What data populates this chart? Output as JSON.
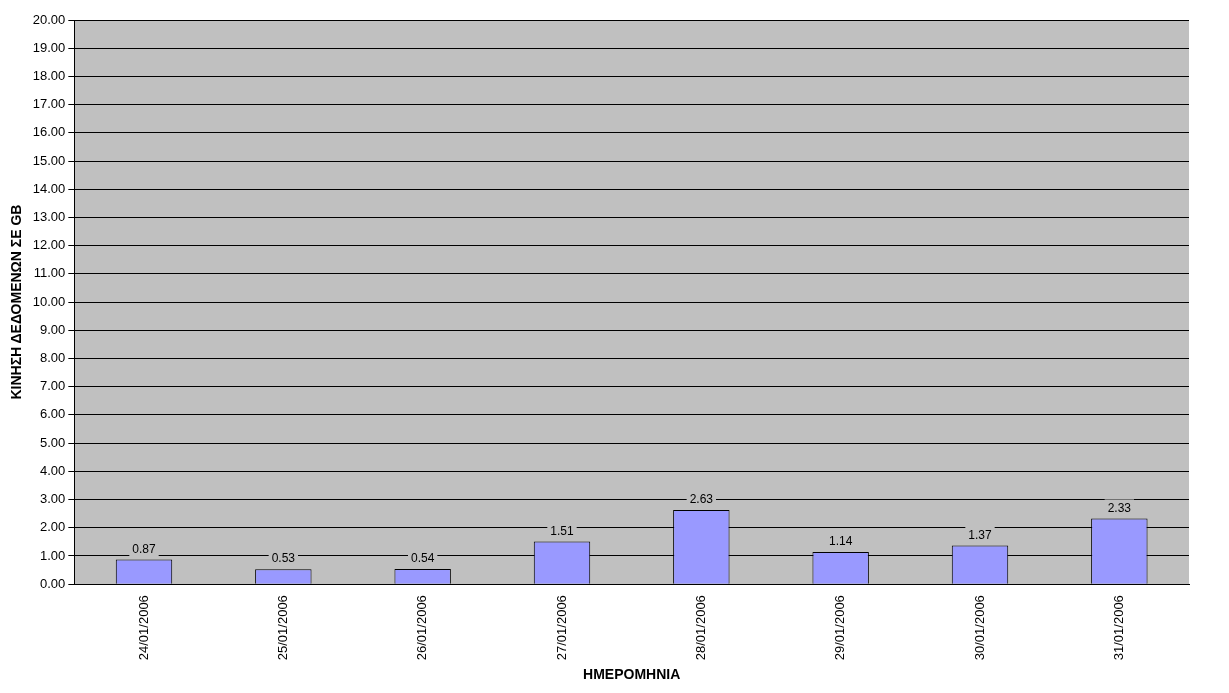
{
  "chart_data": {
    "type": "bar",
    "xlabel": "ΗΜΕΡΟΜΗΝΙΑ",
    "ylabel": "ΚΙΝΗΣΗ ΔΕΔΟΜΕΝΩΝ ΣΕ GB",
    "categories": [
      "24/01/2006",
      "25/01/2006",
      "26/01/2006",
      "27/01/2006",
      "28/01/2006",
      "29/01/2006",
      "30/01/2006",
      "31/01/2006"
    ],
    "values": [
      0.87,
      0.53,
      0.54,
      1.51,
      2.63,
      1.14,
      1.37,
      2.33
    ],
    "color": "#9999ff",
    "ylim": [
      0,
      20
    ],
    "yticks": [
      {
        "value": 0,
        "label": "0.00"
      },
      {
        "value": 1,
        "label": "1.00"
      },
      {
        "value": 2,
        "label": "2.00"
      },
      {
        "value": 3,
        "label": "3.00"
      },
      {
        "value": 4,
        "label": "4.00"
      },
      {
        "value": 5,
        "label": "5.00"
      },
      {
        "value": 6,
        "label": "6.00"
      },
      {
        "value": 7,
        "label": "7.00"
      },
      {
        "value": 8,
        "label": "8.00"
      },
      {
        "value": 9,
        "label": "9.00"
      },
      {
        "value": 10,
        "label": "10.00"
      },
      {
        "value": 11,
        "label": "11.00"
      },
      {
        "value": 12,
        "label": "12.00"
      },
      {
        "value": 13,
        "label": "13.00"
      },
      {
        "value": 14,
        "label": "14.00"
      },
      {
        "value": 15,
        "label": "15.00"
      },
      {
        "value": 16,
        "label": "16.00"
      },
      {
        "value": 17,
        "label": "17.00"
      },
      {
        "value": 18,
        "label": "18.00"
      },
      {
        "value": 19,
        "label": "19.00"
      },
      {
        "value": 20,
        "label": "20.00"
      }
    ],
    "grid": "y",
    "data_labels": true,
    "legend": false
  }
}
